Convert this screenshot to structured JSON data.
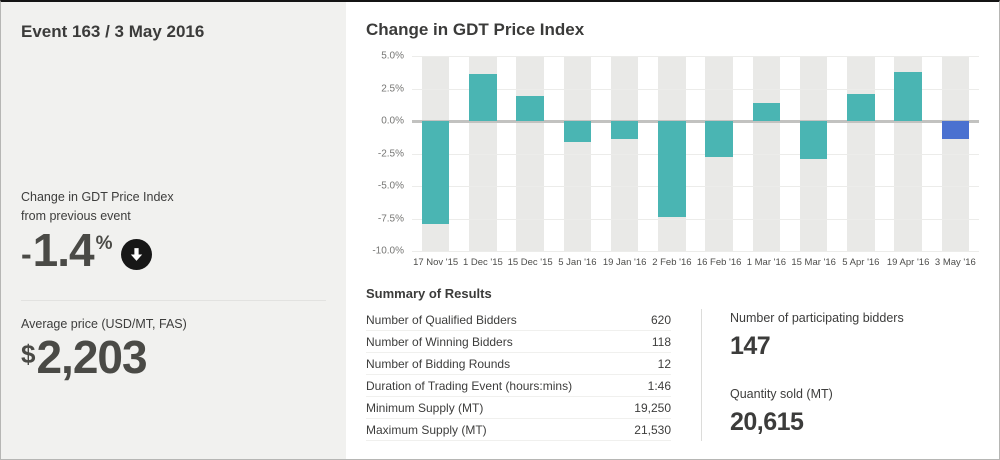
{
  "sidebar": {
    "title": "Event 163 / 3 May 2016",
    "change_label_line1": "Change in GDT Price Index",
    "change_label_line2": "from previous event",
    "change_sign": "-",
    "change_value": "1.4",
    "change_unit": "%",
    "change_direction_icon": "down-arrow-icon",
    "avg_price_label": "Average price (USD/MT, FAS)",
    "avg_currency": "$",
    "avg_value": "2,203"
  },
  "main": {
    "chart_title": "Change in GDT Price Index",
    "summary_title": "Summary of Results",
    "summary_rows": [
      {
        "label": "Number of Qualified Bidders",
        "value": "620"
      },
      {
        "label": "Number of Winning Bidders",
        "value": "118"
      },
      {
        "label": "Number of Bidding Rounds",
        "value": "12"
      },
      {
        "label": "Duration of Trading Event (hours:mins)",
        "value": "1:46"
      },
      {
        "label": "Minimum Supply (MT)",
        "value": "19,250"
      },
      {
        "label": "Maximum Supply (MT)",
        "value": "21,530"
      }
    ],
    "stats": [
      {
        "label": "Number of participating bidders",
        "value": "147"
      },
      {
        "label": "Quantity sold (MT)",
        "value": "20,615"
      }
    ]
  },
  "chart_data": {
    "type": "bar",
    "title": "Change in GDT Price Index",
    "categories": [
      "17 Nov '15",
      "1 Dec '15",
      "15 Dec '15",
      "5 Jan '16",
      "19 Jan '16",
      "2 Feb '16",
      "16 Feb '16",
      "1 Mar '16",
      "15 Mar '16",
      "5 Apr '16",
      "19 Apr '16",
      "3 May '16"
    ],
    "values": [
      -7.9,
      3.6,
      1.9,
      -1.6,
      -1.4,
      -7.4,
      -2.8,
      1.4,
      -2.9,
      2.1,
      3.8,
      -1.4
    ],
    "xlabel": "",
    "ylabel": "",
    "ylim": [
      -10,
      5
    ],
    "yticks": [
      {
        "label": "5.0%",
        "value": 5
      },
      {
        "label": "2.5%",
        "value": 2.5
      },
      {
        "label": "0.0%",
        "value": 0
      },
      {
        "label": "-2.5%",
        "value": -2.5
      },
      {
        "label": "-5.0%",
        "value": -5
      },
      {
        "label": "-7.5%",
        "value": -7.5
      },
      {
        "label": "-10.0%",
        "value": -10
      }
    ],
    "grid": true,
    "legend": "none",
    "bar_color": "#4ab5b3",
    "highlight_color": "#4a71d0",
    "highlight_index": 11,
    "column_band_color": "#e9e9e7"
  }
}
